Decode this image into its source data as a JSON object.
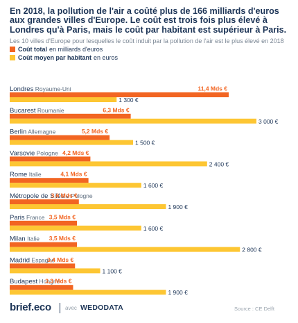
{
  "header": {
    "title": "En 2018, la pollution de l'air a coûté plus de 166 milliards d'euros aux grandes villes d'Europe. Le coût est trois fois plus élevé à Londres qu'à Paris, mais le coût par habitant est supérieur à Paris.",
    "subtitle": "Les 10 villes d'Europe pour lesquelles le coût induit par la pollution de l'air est le plus élevé en 2018"
  },
  "legend": {
    "total_bold": "Coût total",
    "total_rest": "en milliards d'euros",
    "per_capita_bold": "Coût moyen par habitant",
    "per_capita_rest": "en euros"
  },
  "colors": {
    "total": "#f26522",
    "per_capita": "#fdc633",
    "text": "#1d3557",
    "muted": "#7a8694"
  },
  "chart_data": {
    "type": "bar",
    "orientation": "horizontal",
    "categories": [
      {
        "city": "Londres",
        "country": "Royaume-Uni"
      },
      {
        "city": "Bucarest",
        "country": "Roumanie"
      },
      {
        "city": "Berlin",
        "country": "Allemagne"
      },
      {
        "city": "Varsovie",
        "country": "Pologne"
      },
      {
        "city": "Rome",
        "country": "Italie"
      },
      {
        "city": "Métropole de Silésie",
        "country": "Pologne"
      },
      {
        "city": "Paris",
        "country": "France"
      },
      {
        "city": "Milan",
        "country": "Italie"
      },
      {
        "city": "Madrid",
        "country": "Espagne"
      },
      {
        "city": "Budapest",
        "country": "Hongrie"
      }
    ],
    "series": [
      {
        "name": "Coût total en milliards d'euros",
        "values": [
          11.4,
          6.3,
          5.2,
          4.2,
          4.1,
          3.6,
          3.5,
          3.5,
          3.4,
          3.3
        ],
        "labels": [
          "11,4 Mds €",
          "6,3 Mds €",
          "5,2 Mds €",
          "4,2 Mds €",
          "4,1 Mds €",
          "3,6 Mds €",
          "3,5 Mds €",
          "3,5 Mds €",
          "3,4 Mds €",
          "3,3 Mds €"
        ]
      },
      {
        "name": "Coût moyen par habitant en euros",
        "values": [
          1300,
          3000,
          1500,
          2400,
          1600,
          1900,
          1600,
          2800,
          1100,
          1900
        ],
        "labels": [
          "1 300 €",
          "3 000 €",
          "1 500 €",
          "2 400 €",
          "1 600 €",
          "1 900 €",
          "1 600 €",
          "2 800 €",
          "1 100 €",
          "1 900 €"
        ]
      }
    ]
  },
  "footer": {
    "logo": "brief.eco",
    "avec": "avec",
    "partner": "WEDODATA",
    "source": "Source : CE Delft"
  }
}
